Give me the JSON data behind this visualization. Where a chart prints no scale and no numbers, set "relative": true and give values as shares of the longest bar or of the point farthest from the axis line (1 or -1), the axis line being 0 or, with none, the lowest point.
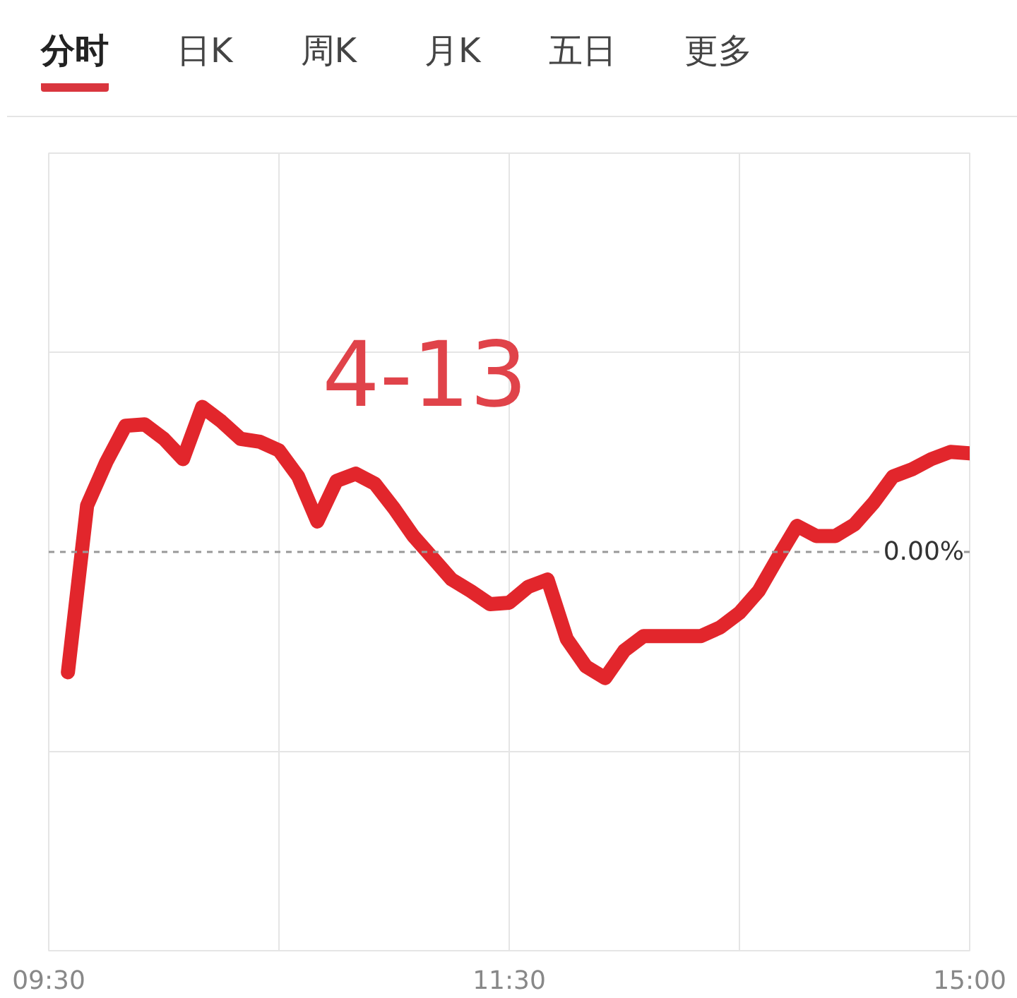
{
  "chart_data": {
    "type": "line",
    "relative": true,
    "categories": [
      "09:30",
      null,
      null,
      null,
      null,
      null,
      null,
      null,
      null,
      null,
      null,
      null,
      null,
      null,
      null,
      null,
      null,
      null,
      null,
      null,
      null,
      null,
      null,
      null,
      "11:30",
      null,
      null,
      null,
      null,
      null,
      null,
      null,
      null,
      null,
      null,
      null,
      null,
      null,
      null,
      null,
      null,
      null,
      null,
      null,
      null,
      null,
      null,
      null,
      "15:00"
    ],
    "series": [
      {
        "color": "#e2262c",
        "values": [
          null,
          -0.83,
          0.32,
          0.62,
          0.87,
          0.88,
          0.78,
          0.64,
          1.0,
          0.9,
          0.78,
          0.76,
          0.7,
          0.52,
          0.21,
          0.49,
          0.54,
          0.47,
          0.3,
          0.11,
          -0.04,
          -0.19,
          -0.27,
          -0.36,
          -0.35,
          -0.24,
          -0.19,
          -0.6,
          -0.79,
          -0.87,
          -0.68,
          -0.58,
          -0.58,
          -0.58,
          -0.58,
          -0.52,
          -0.42,
          -0.27,
          -0.04,
          0.18,
          0.11,
          0.11,
          0.19,
          0.34,
          0.52,
          0.57,
          0.64,
          0.69,
          0.68
        ]
      }
    ],
    "ref_lines": [
      {
        "axis": "y",
        "value": 0,
        "label": "0.00%",
        "color": "#999999",
        "line_style": "dashed"
      }
    ],
    "annotations": [
      "4-13",
      "分时",
      "日K",
      "周K",
      "月K",
      "五日",
      "更多"
    ],
    "grid": true,
    "line_style": "solid"
  }
}
